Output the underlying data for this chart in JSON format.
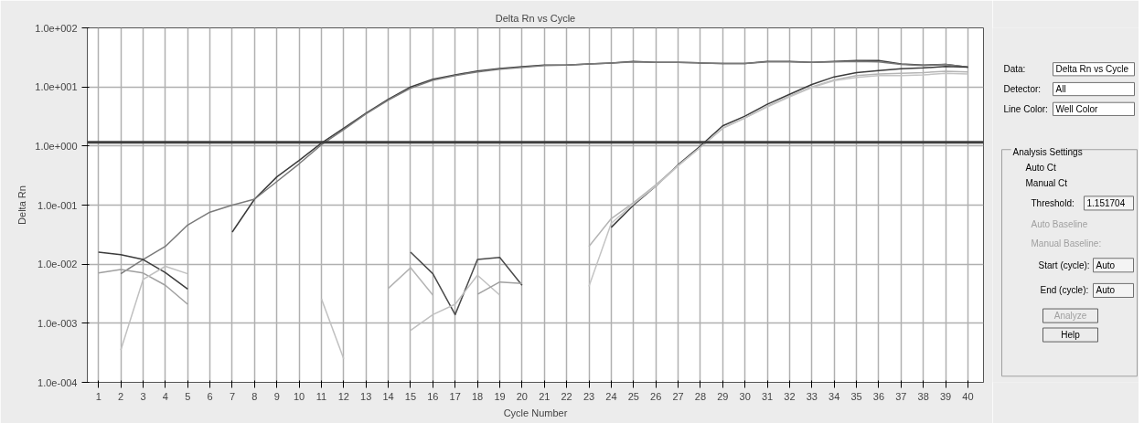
{
  "chart_data": {
    "type": "line",
    "title": "Delta Rn vs Cycle",
    "xlabel": "Cycle Number",
    "ylabel": "Delta Rn",
    "log": "y",
    "grid": true,
    "marker": "none",
    "line_style": "solid",
    "xlim": [
      0.5,
      40.7
    ],
    "xticks": [
      1,
      2,
      3,
      4,
      5,
      6,
      7,
      8,
      9,
      10,
      11,
      12,
      13,
      14,
      15,
      16,
      17,
      18,
      19,
      20,
      21,
      22,
      23,
      24,
      25,
      26,
      27,
      28,
      29,
      30,
      31,
      32,
      33,
      34,
      35,
      36,
      37,
      38,
      39,
      40
    ],
    "ylim": [
      0.0001,
      100
    ],
    "yticks": [
      {
        "value": 0.0001,
        "label": "1.0e-004"
      },
      {
        "value": 0.001,
        "label": "1.0e-003"
      },
      {
        "value": 0.01,
        "label": "1.0e-002"
      },
      {
        "value": 0.1,
        "label": "1.0e-001"
      },
      {
        "value": 1,
        "label": "1.0e+000"
      },
      {
        "value": 10,
        "label": "1.0e+001"
      },
      {
        "value": 100,
        "label": "1.0e+002"
      }
    ],
    "ref_lines": [
      {
        "axis": "y",
        "value": 1.151704,
        "color": "#404040"
      }
    ],
    "series": [
      {
        "color": "#3c3c3c",
        "x": [
          7,
          8,
          9,
          10,
          11,
          12,
          13,
          14,
          15,
          16,
          17,
          18,
          19,
          20,
          21,
          22,
          23,
          24,
          25,
          26,
          27,
          28,
          29,
          30,
          31,
          32,
          33,
          34,
          35,
          36,
          37,
          38,
          39,
          40
        ],
        "values": [
          0.035,
          0.126,
          0.3,
          0.57,
          1.12,
          2.0,
          3.6,
          6.2,
          10,
          13.5,
          16,
          18.6,
          20.5,
          22,
          23.5,
          23.5,
          24.5,
          25.5,
          27,
          26,
          26,
          25.5,
          25,
          25,
          27,
          27,
          26,
          27,
          28,
          28,
          24.5,
          23.5,
          24,
          21.6
        ]
      },
      {
        "color": "#7a7a7a",
        "x": [
          2,
          3,
          4,
          5,
          6,
          7,
          8,
          9,
          10,
          11,
          12,
          13,
          14,
          15,
          16,
          17,
          18,
          19,
          20,
          21,
          22,
          23,
          24,
          25,
          26,
          27,
          28,
          29,
          30,
          31,
          32,
          33,
          34,
          35,
          36,
          37,
          38,
          39,
          40
        ],
        "values": [
          0.0069,
          0.012,
          0.02,
          0.046,
          0.076,
          0.1,
          0.126,
          0.25,
          0.5,
          1.05,
          1.9,
          3.5,
          6.0,
          9.5,
          13,
          15.5,
          18,
          20,
          21.5,
          23,
          23.5,
          24.5,
          25.5,
          26.5,
          26,
          26,
          25.5,
          25,
          25,
          26.5,
          26.5,
          26,
          26.5,
          27,
          26.5,
          24,
          23,
          24,
          21.6
        ]
      },
      {
        "color": "#3c3c3c",
        "x": [
          1,
          2,
          3,
          4,
          5
        ],
        "values": [
          0.016,
          0.0145,
          0.012,
          0.0072,
          0.0038
        ]
      },
      {
        "color": "#a0a0a0",
        "x": [
          1,
          2,
          3,
          4,
          5
        ],
        "values": [
          0.0071,
          0.0081,
          0.0071,
          0.0044,
          0.0021
        ]
      },
      {
        "color": "#c0c0c0",
        "x": [
          2,
          3,
          4,
          5
        ],
        "values": [
          0.00035,
          0.0055,
          0.0092,
          0.0069
        ]
      },
      {
        "color": "#c0c0c0",
        "x": [
          11,
          12
        ],
        "values": [
          0.0026,
          0.00025
        ]
      },
      {
        "color": "#4a4a4a",
        "x": [
          15,
          16,
          17,
          18,
          19,
          20
        ],
        "values": [
          0.016,
          0.0069,
          0.0014,
          0.012,
          0.013,
          0.0044
        ]
      },
      {
        "color": "#b4b4b4",
        "x": [
          14,
          15,
          16
        ],
        "values": [
          0.0039,
          0.0087,
          0.003
        ]
      },
      {
        "color": "#c0c0c0",
        "x": [
          15,
          16,
          17,
          18,
          19
        ],
        "values": [
          0.00076,
          0.0014,
          0.0021,
          0.0065,
          0.003
        ]
      },
      {
        "color": "#a0a0a0",
        "x": [
          18,
          19,
          20
        ],
        "values": [
          0.0031,
          0.005,
          0.0047
        ]
      },
      {
        "color": "#3c3c3c",
        "x": [
          24,
          25,
          26,
          27,
          28,
          29,
          30,
          31,
          32,
          33,
          34,
          35,
          36,
          37,
          38,
          39,
          40
        ],
        "values": [
          0.042,
          0.1,
          0.21,
          0.48,
          1.0,
          2.2,
          3.2,
          5.1,
          7.5,
          11,
          14.8,
          17.5,
          19,
          20.4,
          21,
          22.3,
          21.6
        ]
      },
      {
        "color": "#b4b4b4",
        "x": [
          23,
          24,
          25,
          26,
          27,
          28,
          29,
          30,
          31,
          32,
          33,
          34,
          35,
          36,
          37,
          38,
          39,
          40
        ],
        "values": [
          0.02,
          0.059,
          0.11,
          0.22,
          0.47,
          0.95,
          2.0,
          3.0,
          4.7,
          7.0,
          10,
          13.2,
          15.5,
          16.5,
          17,
          17.5,
          18.5,
          18
        ]
      },
      {
        "color": "#c4c4c4",
        "x": [
          23,
          24,
          25,
          26,
          27,
          28,
          29,
          30,
          31,
          32,
          33,
          34,
          35,
          36,
          37,
          38,
          39,
          40
        ],
        "values": [
          0.0042,
          0.049,
          0.105,
          0.21,
          0.46,
          0.95,
          2.0,
          3.0,
          4.6,
          6.8,
          9.8,
          12.8,
          14.5,
          15.5,
          15.5,
          16,
          17,
          16.5
        ]
      }
    ],
    "annotations": [
      "Data:",
      "Delta Rn vs Cycle",
      "Detector:",
      "All",
      "Line Color:",
      "Well Color",
      "Analysis Settings",
      "Auto Ct",
      "Manual Ct",
      "Threshold:",
      "1.151704",
      "Auto Baseline",
      "Manual Baseline:",
      "Start (cycle):",
      "Auto",
      "End (cycle):",
      "Auto",
      "Analyze",
      "Help"
    ]
  }
}
